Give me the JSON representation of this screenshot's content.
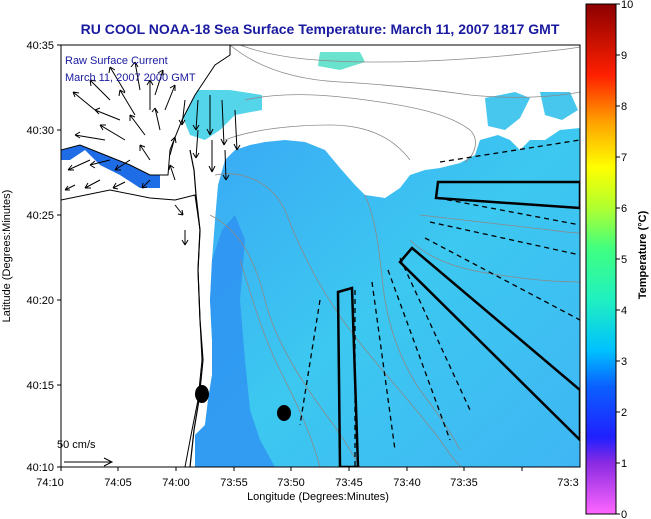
{
  "title": "RU COOL  NOAA-18  Sea Surface Temperature:  March 11, 2007 1817 GMT",
  "annotation_line1": "Raw Surface Current",
  "annotation_line2": "March 11, 2007 2000 GMT",
  "scale_label": "50 cm/s",
  "xlabel": "Longitude (Degrees:Minutes)",
  "ylabel": "Latitude (Degrees:Minutes)",
  "x_ticks": [
    "74:10",
    "74:05",
    "74:00",
    "73:55",
    "73:50",
    "73:45",
    "73:40",
    "73:35",
    "73:3"
  ],
  "y_ticks": [
    "40:35",
    "40:30",
    "40:25",
    "40:20",
    "40:15",
    "40:10"
  ],
  "colorbar": {
    "label": "Temperature (°C)",
    "ticks": [
      "10",
      "9",
      "8",
      "7",
      "6",
      "5",
      "4",
      "3",
      "2",
      "1",
      "0"
    ],
    "min": 0,
    "max": 10
  },
  "colors": {
    "title": "#1a1aa0",
    "water": "#33c0f0",
    "land": "#ffffff",
    "frame": "#000000"
  }
}
